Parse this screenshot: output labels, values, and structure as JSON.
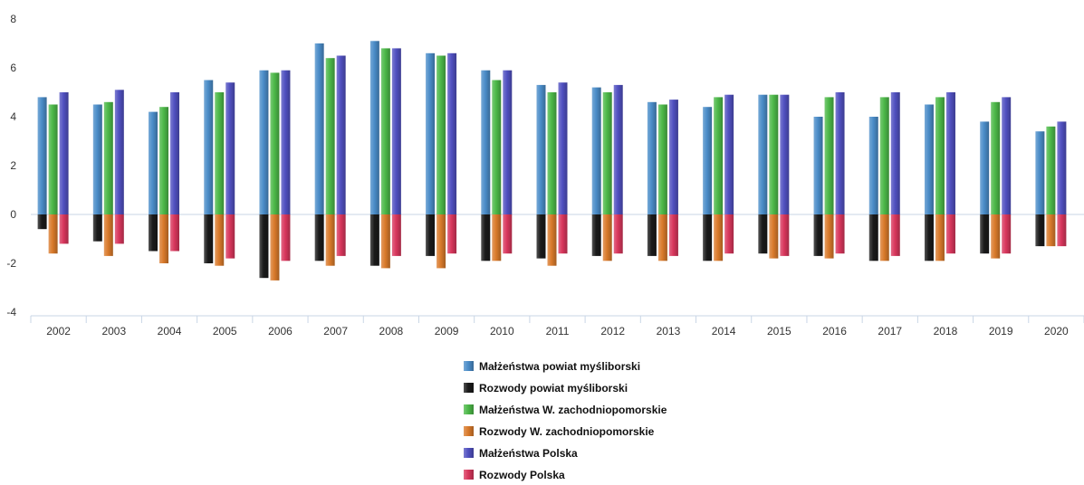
{
  "chart_data": {
    "type": "bar",
    "categories": [
      "2002",
      "2003",
      "2004",
      "2005",
      "2006",
      "2007",
      "2008",
      "2009",
      "2010",
      "2011",
      "2012",
      "2013",
      "2014",
      "2015",
      "2016",
      "2017",
      "2018",
      "2019",
      "2020"
    ],
    "ylim": [
      -4,
      8
    ],
    "yticks": [
      -4,
      -2,
      0,
      2,
      4,
      6,
      8
    ],
    "grid": false,
    "legend_position": "bottom",
    "series": [
      {
        "name": "Małżeństwa powiat myśliborski",
        "color": "#4a8cc8",
        "values": [
          4.8,
          4.5,
          4.2,
          5.5,
          5.9,
          7.0,
          7.1,
          6.6,
          5.9,
          5.3,
          5.2,
          4.6,
          4.4,
          4.9,
          4.0,
          4.0,
          4.5,
          3.8,
          3.4
        ]
      },
      {
        "name": "Rozwody powiat myśliborski",
        "color": "#1a1a1a",
        "values": [
          -0.6,
          -1.1,
          -1.5,
          -2.0,
          -2.6,
          -1.9,
          -2.1,
          -1.7,
          -1.9,
          -1.8,
          -1.7,
          -1.7,
          -1.9,
          -1.6,
          -1.7,
          -1.9,
          -1.9,
          -1.6,
          -1.3
        ]
      },
      {
        "name": "Małżeństwa W. zachodniopomorskie",
        "color": "#4cb848",
        "values": [
          4.5,
          4.6,
          4.4,
          5.0,
          5.8,
          6.4,
          6.8,
          6.5,
          5.5,
          5.0,
          5.0,
          4.5,
          4.8,
          4.9,
          4.8,
          4.8,
          4.8,
          4.6,
          3.6
        ]
      },
      {
        "name": "Rozwody W. zachodniopomorskie",
        "color": "#d97a2b",
        "values": [
          -1.6,
          -1.7,
          -2.0,
          -2.1,
          -2.7,
          -2.1,
          -2.2,
          -2.2,
          -1.9,
          -2.1,
          -1.9,
          -1.9,
          -1.9,
          -1.8,
          -1.8,
          -1.9,
          -1.9,
          -1.8,
          -1.3
        ]
      },
      {
        "name": "Małżeństwa Polska",
        "color": "#5050c0",
        "values": [
          5.0,
          5.1,
          5.0,
          5.4,
          5.9,
          6.5,
          6.8,
          6.6,
          5.9,
          5.4,
          5.3,
          4.7,
          4.9,
          4.9,
          5.0,
          5.0,
          5.0,
          4.8,
          3.8
        ]
      },
      {
        "name": "Rozwody Polska",
        "color": "#d8365c",
        "values": [
          -1.2,
          -1.2,
          -1.5,
          -1.8,
          -1.9,
          -1.7,
          -1.7,
          -1.6,
          -1.6,
          -1.6,
          -1.6,
          -1.7,
          -1.6,
          -1.7,
          -1.6,
          -1.7,
          -1.6,
          -1.6,
          -1.3
        ]
      }
    ]
  }
}
